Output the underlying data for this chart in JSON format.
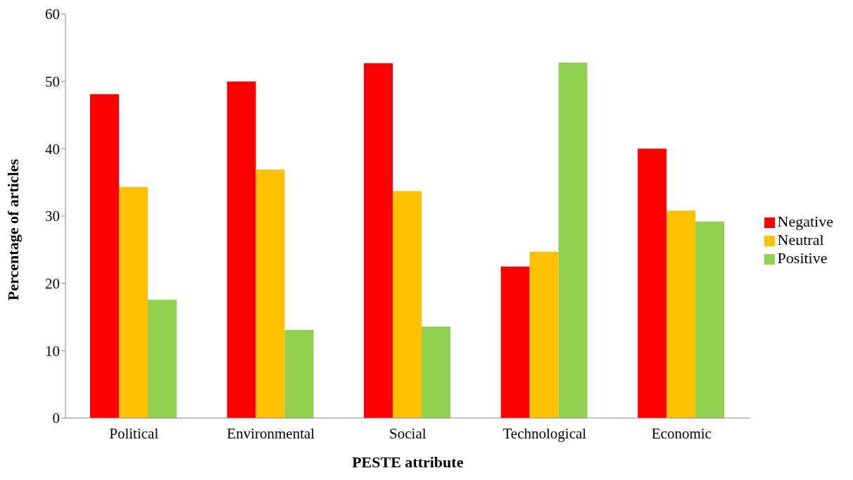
{
  "chart_data": {
    "type": "bar",
    "xlabel": "PESTE attribute",
    "ylabel": "Percentage of articles",
    "categories": [
      "Political",
      "Environmental",
      "Social",
      "Technological",
      "Economic"
    ],
    "series": [
      {
        "name": "Negative",
        "color": "#ff0000",
        "values": [
          48.1,
          50.0,
          52.7,
          22.5,
          40.0
        ]
      },
      {
        "name": "Neutral",
        "color": "#ffc000",
        "values": [
          34.3,
          36.9,
          33.7,
          24.7,
          30.8
        ]
      },
      {
        "name": "Positive",
        "color": "#92d050",
        "values": [
          17.6,
          13.1,
          13.6,
          52.8,
          29.2
        ]
      }
    ],
    "ylim": [
      0,
      60
    ],
    "yticks": [
      0,
      10,
      20,
      30,
      40,
      50,
      60
    ],
    "grid": false,
    "legend": "right"
  }
}
